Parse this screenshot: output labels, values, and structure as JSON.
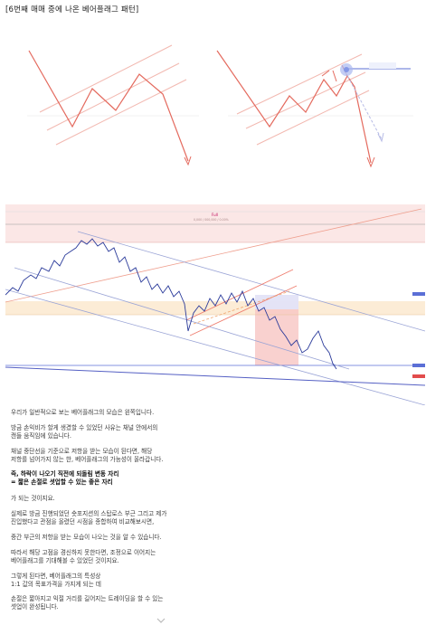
{
  "header": {
    "title": "[6번째 매매 중에 나온 베어플래그 패턴]"
  },
  "chart_annotations": {
    "legend_tag": "Full",
    "top_note": "0,000 / 000,000 / 0.00%"
  },
  "article": {
    "paragraphs": [
      {
        "lines": [
          "우리가 일반적으로 보는 베어플래그의 모습은 왼쪽입니다."
        ],
        "bold": false
      },
      {
        "lines": [
          "방금 손익비가 할게 생겼할 수 있었던 사유는 채널 안에서의",
          "캔들 움직임에 있습니다."
        ],
        "bold": false
      },
      {
        "lines": [
          "채널 중단선을 기준으로 저항을 받는 모습이 된다면, 해당",
          "저항를 넘어가지 않는 한, 베어플래그의 가능성이 올라갑니다."
        ],
        "bold": false
      },
      {
        "lines": [
          "즉, 하락이 나오기 직전에 되돌림 변동 자리",
          "= 짧은 손절로 셧업할 수 있는 좋은 자리"
        ],
        "bold": true
      },
      {
        "lines": [
          "가 되는 것이지요."
        ],
        "bold": false
      },
      {
        "lines": [
          "실제로 방금 진행되었던 숏포지션의 스탑로스 부근 그리고 제가",
          "진입했다고 관점을 올렸던 시점을 종합하여 비교해보시면,"
        ],
        "bold": false
      },
      {
        "lines": [
          "중간 부근의 저항을 받는 모습이 나오는 것을 알 수 있습니다."
        ],
        "bold": false
      },
      {
        "lines": [
          "따라서 해당 고점을 경신하지 못한다면, 조정으로 이어지는",
          "베어플래그를 기대해볼 수 있었던 것이지요."
        ],
        "bold": false
      },
      {
        "lines": [
          "그렇게 된다면, 베어플래그의 특성상",
          "1:1 값의 목표가격을 가지게 되는 데"
        ],
        "bold": false
      },
      {
        "lines": [
          "손절은 짧아지고 익절 거리를 길어지는 트레이딩을 할 수 있는",
          "셋업이 완성됩니다."
        ],
        "bold": false
      }
    ]
  },
  "colors": {
    "pattern": "#e46a5e",
    "channel": "#f2b8b0",
    "price": "#2a3a9a",
    "trend": "#5566bb"
  }
}
